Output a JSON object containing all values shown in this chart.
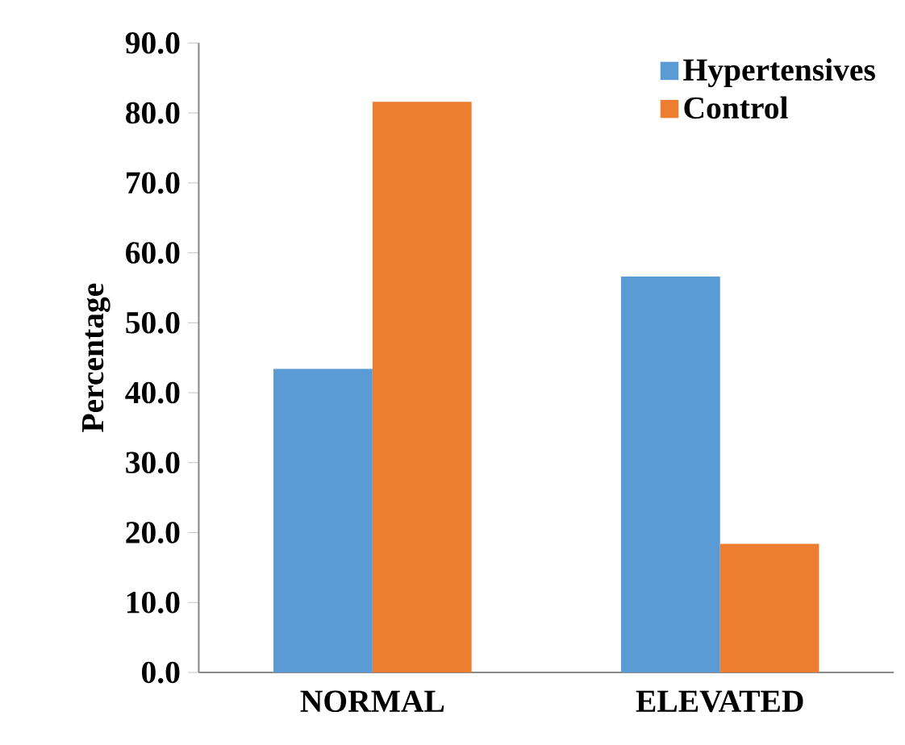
{
  "chart_data": {
    "type": "bar",
    "ylabel": "Percentage",
    "categories": [
      "NORMAL",
      "ELEVATED"
    ],
    "series": [
      {
        "name": "Hypertensives",
        "color": "#5b9bd5",
        "values": [
          43.4,
          56.6
        ]
      },
      {
        "name": "Control",
        "color": "#ed7d31",
        "values": [
          81.6,
          18.4
        ]
      }
    ],
    "ylim": [
      0,
      90
    ],
    "yticks": [
      {
        "value": 0,
        "label": "0.0"
      },
      {
        "value": 10,
        "label": "10.0"
      },
      {
        "value": 20,
        "label": "20.0"
      },
      {
        "value": 30,
        "label": "30.0"
      },
      {
        "value": 40,
        "label": "40.0"
      },
      {
        "value": 50,
        "label": "50.0"
      },
      {
        "value": 60,
        "label": "60.0"
      },
      {
        "value": 70,
        "label": "70.0"
      },
      {
        "value": 80,
        "label": "80.0"
      },
      {
        "value": 90,
        "label": "90.0"
      }
    ],
    "grid": false,
    "legend": "top right"
  }
}
